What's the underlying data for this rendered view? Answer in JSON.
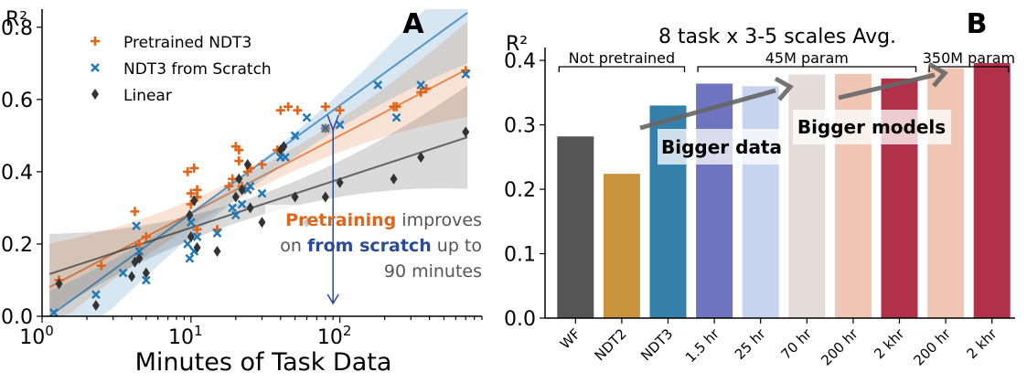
{
  "chart_data": [
    {
      "panel": "A",
      "type": "scatter",
      "xlabel": "Minutes of Task Data",
      "ylabel": "R²",
      "xscale": "log",
      "xlim": [
        1,
        900
      ],
      "ylim": [
        0,
        0.85
      ],
      "x_ticks": [
        {
          "value": 1,
          "base": "10",
          "exp": "0"
        },
        {
          "value": 10,
          "base": "10",
          "exp": "1"
        },
        {
          "value": 100,
          "base": "10",
          "exp": "2"
        }
      ],
      "y_ticks": [
        "0.0",
        "0.2",
        "0.4",
        "0.6",
        "0.8"
      ],
      "legend_position": "top-left",
      "series": [
        {
          "name": "Pretrained NDT3",
          "color": "#e0651a",
          "marker": "plus",
          "points": [
            [
              1.3,
              0.1
            ],
            [
              2.5,
              0.14
            ],
            [
              4.2,
              0.29
            ],
            [
              4.5,
              0.2
            ],
            [
              5.0,
              0.22
            ],
            [
              9.5,
              0.4
            ],
            [
              10,
              0.34
            ],
            [
              10,
              0.31
            ],
            [
              10.5,
              0.41
            ],
            [
              11,
              0.35
            ],
            [
              11,
              0.24
            ],
            [
              11,
              0.33
            ],
            [
              15,
              0.24
            ],
            [
              18,
              0.36
            ],
            [
              19,
              0.38
            ],
            [
              20,
              0.47
            ],
            [
              21,
              0.43
            ],
            [
              21,
              0.46
            ],
            [
              22,
              0.36
            ],
            [
              24,
              0.4
            ],
            [
              25,
              0.41
            ],
            [
              30,
              0.42
            ],
            [
              38,
              0.46
            ],
            [
              40,
              0.57
            ],
            [
              45,
              0.58
            ],
            [
              52,
              0.57
            ],
            [
              80,
              0.58
            ],
            [
              80,
              0.52
            ],
            [
              100,
              0.57
            ],
            [
              230,
              0.58
            ],
            [
              240,
              0.58
            ],
            [
              350,
              0.62
            ],
            [
              380,
              0.63
            ],
            [
              700,
              0.68
            ]
          ],
          "fit": {
            "slope": 0.215,
            "intercept": 0.07
          }
        },
        {
          "name": "NDT3 from Scratch",
          "color": "#1f77b4",
          "marker": "x",
          "points": [
            [
              1.2,
              0.01
            ],
            [
              2.3,
              0.06
            ],
            [
              3.5,
              0.12
            ],
            [
              4.3,
              0.25
            ],
            [
              4.5,
              0.18
            ],
            [
              5.0,
              0.1
            ],
            [
              9.5,
              0.2
            ],
            [
              9.8,
              0.16
            ],
            [
              10,
              0.26
            ],
            [
              10.5,
              0.18
            ],
            [
              11,
              0.22
            ],
            [
              15,
              0.23
            ],
            [
              19,
              0.3
            ],
            [
              20,
              0.28
            ],
            [
              22,
              0.31
            ],
            [
              24,
              0.35
            ],
            [
              25,
              0.36
            ],
            [
              30,
              0.34
            ],
            [
              40,
              0.44
            ],
            [
              43,
              0.44
            ],
            [
              50,
              0.5
            ],
            [
              60,
              0.55
            ],
            [
              80,
              0.52
            ],
            [
              100,
              0.53
            ],
            [
              180,
              0.64
            ],
            [
              240,
              0.55
            ],
            [
              350,
              0.64
            ],
            [
              700,
              0.67
            ]
          ],
          "fit": {
            "slope": 0.315,
            "intercept": -0.06
          }
        },
        {
          "name": "Linear",
          "color": "#333333",
          "marker": "diamond",
          "points": [
            [
              1.3,
              0.09
            ],
            [
              2.3,
              0.03
            ],
            [
              4.0,
              0.11
            ],
            [
              4.2,
              0.15
            ],
            [
              4.5,
              0.16
            ],
            [
              5.0,
              0.12
            ],
            [
              9.8,
              0.28
            ],
            [
              10,
              0.22
            ],
            [
              10.5,
              0.32
            ],
            [
              11,
              0.19
            ],
            [
              15,
              0.18
            ],
            [
              20,
              0.33
            ],
            [
              21,
              0.38
            ],
            [
              22,
              0.35
            ],
            [
              24,
              0.42
            ],
            [
              25,
              0.3
            ],
            [
              30,
              0.26
            ],
            [
              40,
              0.46
            ],
            [
              42,
              0.47
            ],
            [
              50,
              0.33
            ],
            [
              60,
              0.26
            ],
            [
              80,
              0.33
            ],
            [
              100,
              0.37
            ],
            [
              230,
              0.38
            ],
            [
              350,
              0.44
            ],
            [
              700,
              0.51
            ]
          ],
          "fit": {
            "slope": 0.135,
            "intercept": 0.11
          }
        }
      ],
      "annotation": {
        "highlight1": "Pretraining",
        "middle1": " improves",
        "prefix2": "on ",
        "highlight2": "from scratch",
        "suffix2": " up to",
        "line3": "90 minutes",
        "x_position": 90,
        "highlight1_color": "#e0651a",
        "highlight2_color": "#2a4a9a"
      },
      "panel_label": "A"
    },
    {
      "panel": "B",
      "type": "bar",
      "title": "8 task x 3-5 scales Avg.",
      "ylabel": "R²",
      "ylim": [
        0,
        0.42
      ],
      "y_ticks": [
        "0.0",
        "0.1",
        "0.2",
        "0.3",
        "0.4"
      ],
      "categories": [
        "WF",
        "NDT2",
        "NDT3",
        "1.5 hr",
        "25 hr",
        "70 hr",
        "200 hr",
        "2 khr",
        "200 hr",
        "2 khr"
      ],
      "values": [
        0.282,
        0.224,
        0.33,
        0.364,
        0.36,
        0.378,
        0.379,
        0.372,
        0.388,
        0.396
      ],
      "colors": [
        "#555555",
        "#c8953e",
        "#3580ab",
        "#6e74bd",
        "#c8d3f0",
        "#e6ddd8",
        "#efc5b3",
        "#b2314a",
        "#efc5b3",
        "#b2314a"
      ],
      "groups": [
        {
          "label": "Not pretrained",
          "from": 0,
          "to": 2
        },
        {
          "label": "45M param",
          "from": 3,
          "to": 7
        },
        {
          "label": "350M param",
          "from": 8,
          "to": 9
        }
      ],
      "callouts": [
        "Bigger data",
        "Bigger models"
      ],
      "panel_label": "B"
    }
  ]
}
